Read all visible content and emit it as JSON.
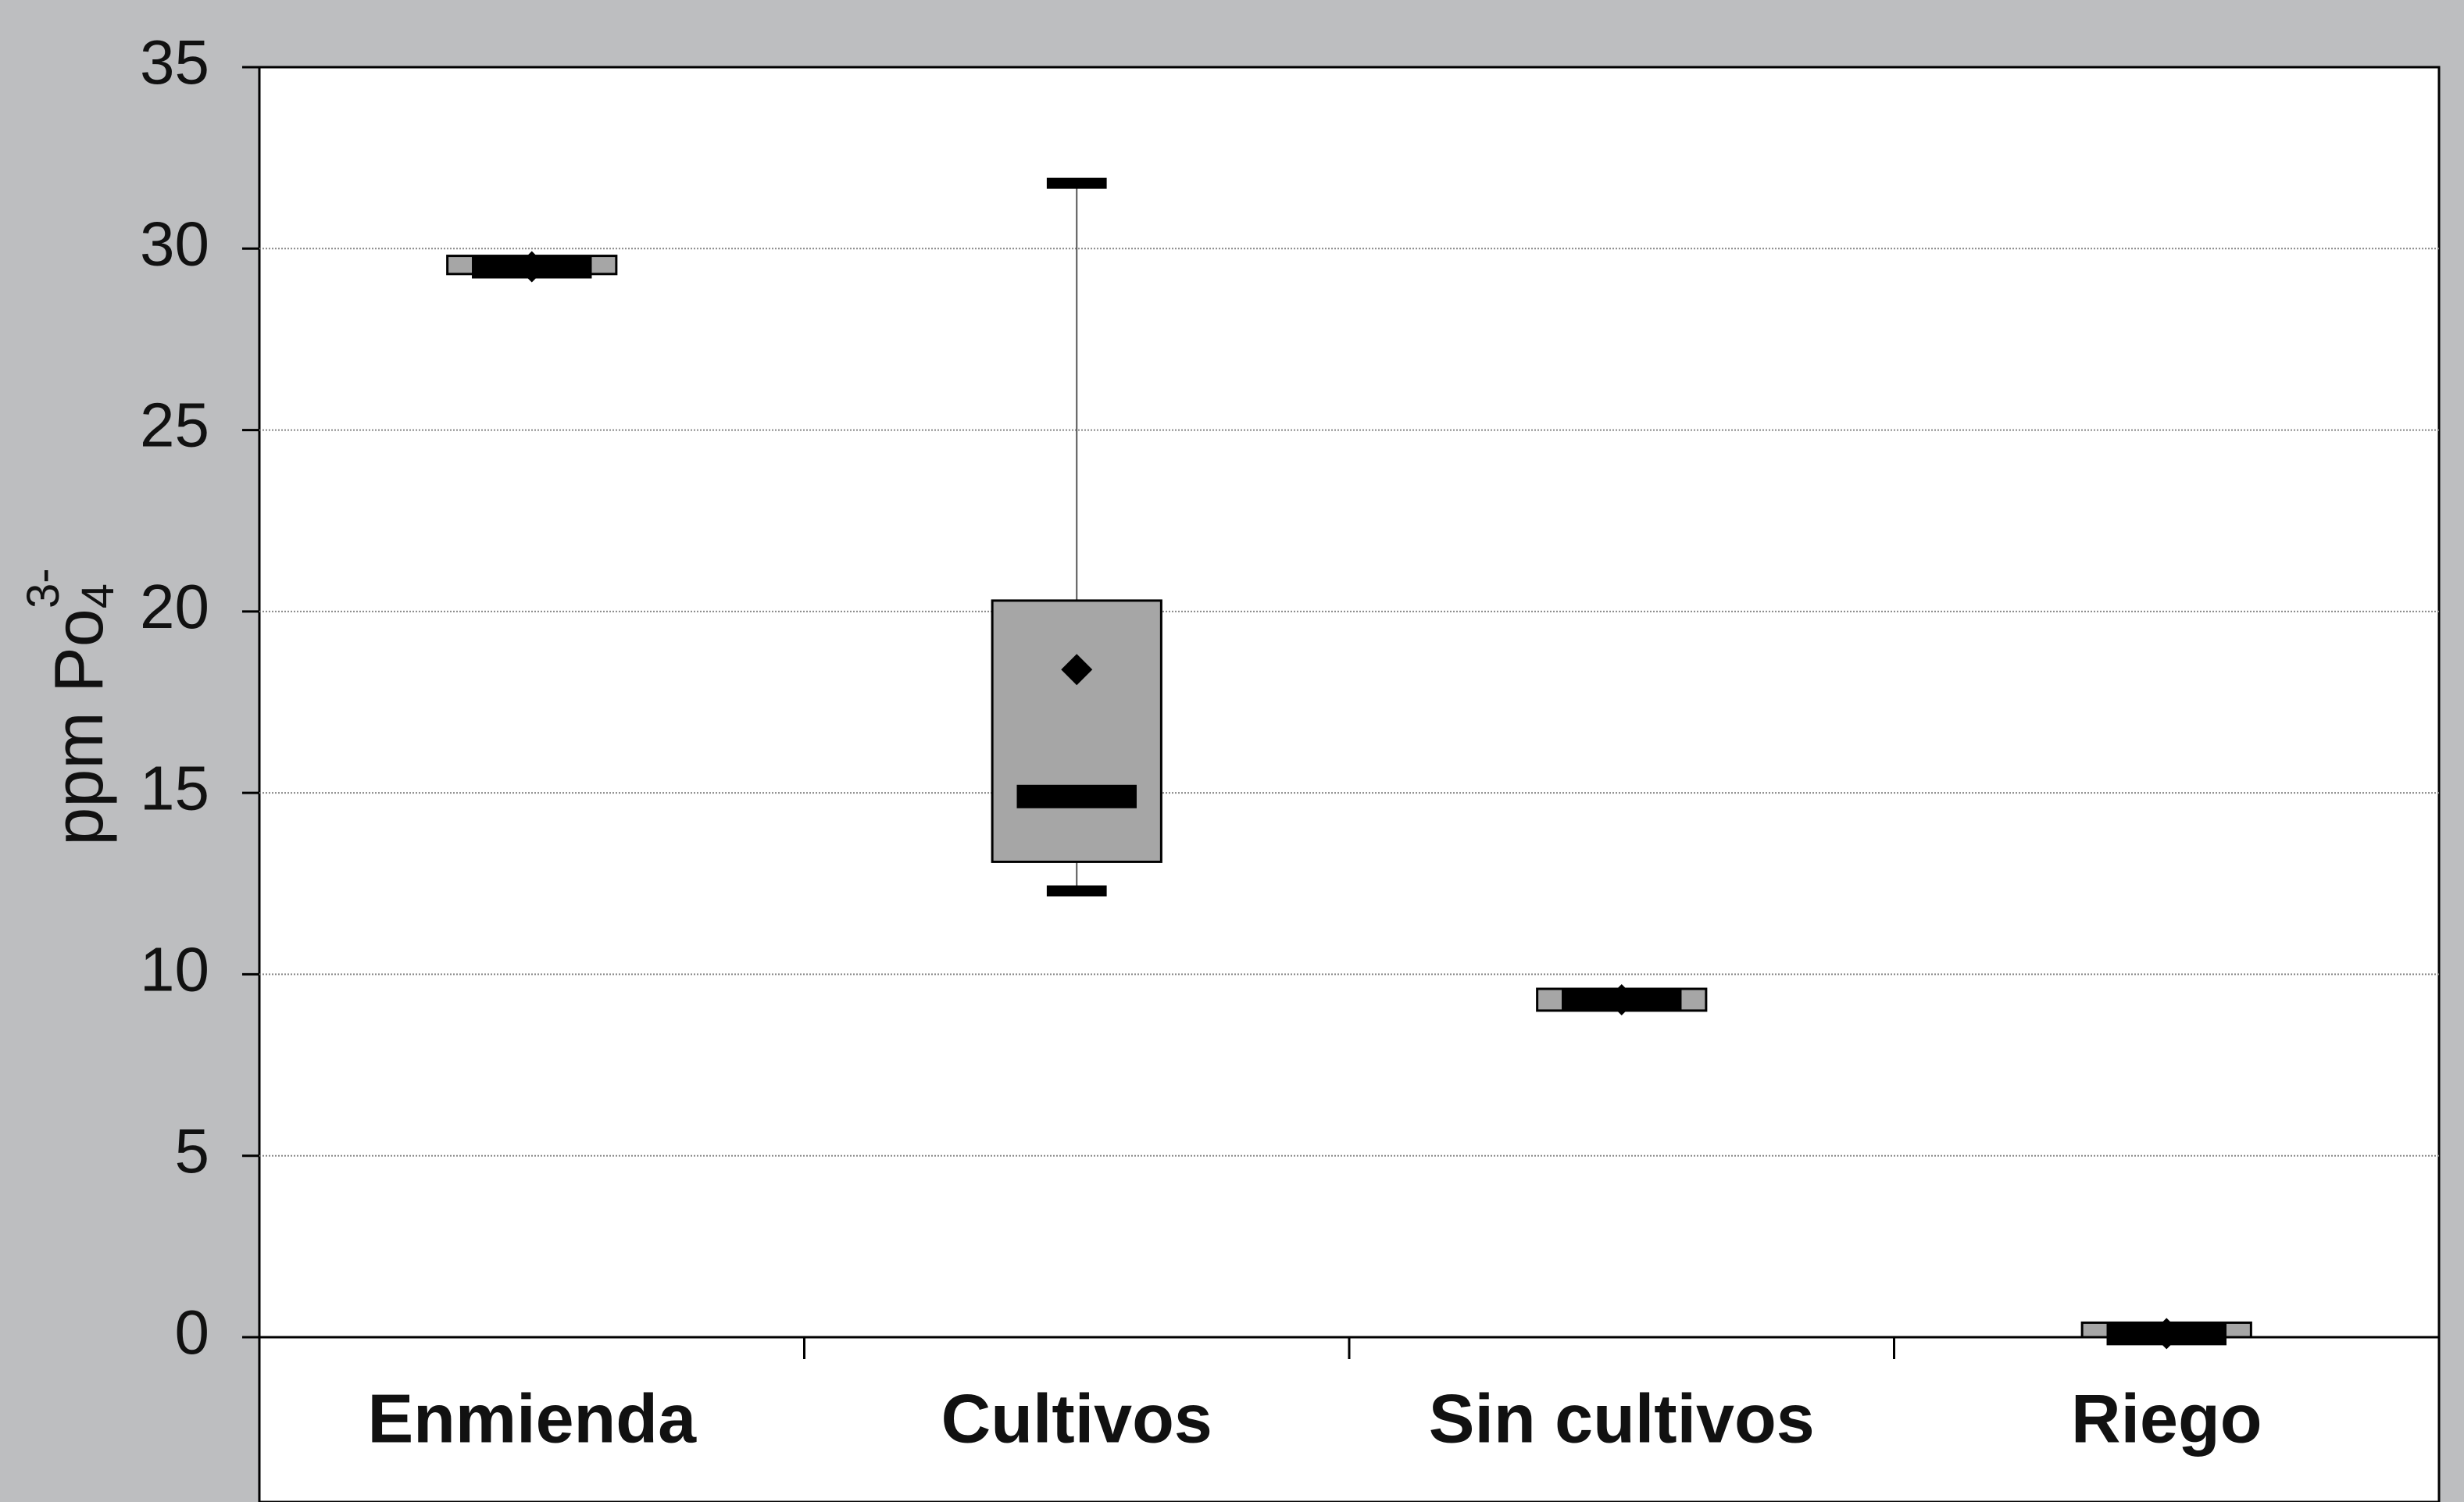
{
  "chart_data": {
    "type": "box",
    "y_label": {
      "text": "ppm Po",
      "subscript": "4",
      "superscript": "3-"
    },
    "categories": [
      "Enmienda",
      "Cultivos",
      "Sin cultivos",
      "Riego"
    ],
    "min": [
      29.5,
      12.3,
      9.3,
      0.1
    ],
    "q1": [
      29.3,
      13.1,
      9.0,
      0.0
    ],
    "median": [
      29.5,
      14.9,
      9.3,
      0.1
    ],
    "q3": [
      29.8,
      20.3,
      9.6,
      0.4
    ],
    "max": [
      29.5,
      31.8,
      9.3,
      0.1
    ],
    "mean": [
      29.5,
      18.4,
      9.3,
      0.1
    ],
    "box_color": "#a6a6a6",
    "ylim": [
      0,
      35
    ],
    "yticks": [
      0,
      5,
      10,
      15,
      20,
      25,
      30,
      35
    ],
    "grid": true
  }
}
